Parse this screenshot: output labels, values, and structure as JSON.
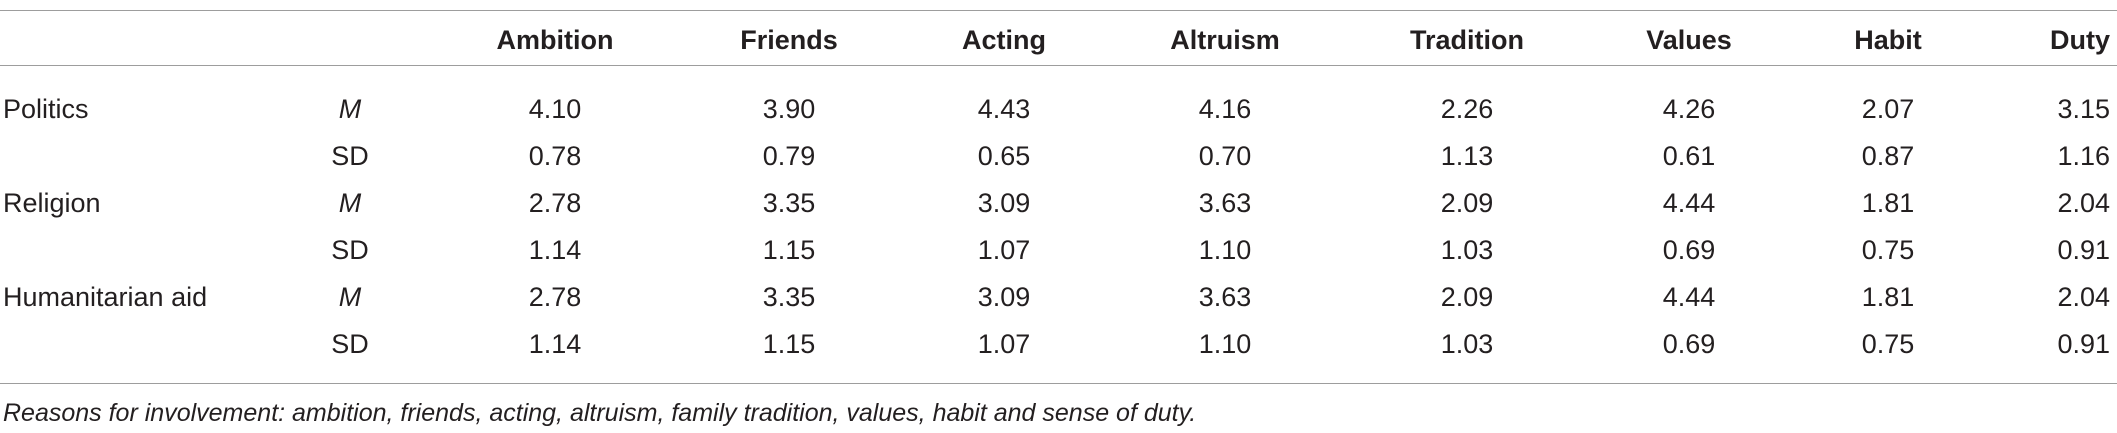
{
  "table": {
    "columns": [
      "Ambition",
      "Friends",
      "Acting",
      "Altruism",
      "Tradition",
      "Values",
      "Habit",
      "Duty"
    ],
    "rows": [
      {
        "group": "Politics",
        "stat": "M",
        "values": [
          "4.10",
          "3.90",
          "4.43",
          "4.16",
          "2.26",
          "4.26",
          "2.07",
          "3.15"
        ]
      },
      {
        "group": "",
        "stat": "SD",
        "values": [
          "0.78",
          "0.79",
          "0.65",
          "0.70",
          "1.13",
          "0.61",
          "0.87",
          "1.16"
        ]
      },
      {
        "group": "Religion",
        "stat": "M",
        "values": [
          "2.78",
          "3.35",
          "3.09",
          "3.63",
          "2.09",
          "4.44",
          "1.81",
          "2.04"
        ]
      },
      {
        "group": "",
        "stat": "SD",
        "values": [
          "1.14",
          "1.15",
          "1.07",
          "1.10",
          "1.03",
          "0.69",
          "0.75",
          "0.91"
        ]
      },
      {
        "group": "Humanitarian aid",
        "stat": "M",
        "values": [
          "2.78",
          "3.35",
          "3.09",
          "3.63",
          "2.09",
          "4.44",
          "1.81",
          "2.04"
        ]
      },
      {
        "group": "",
        "stat": "SD",
        "values": [
          "1.14",
          "1.15",
          "1.07",
          "1.10",
          "1.03",
          "0.69",
          "0.75",
          "0.91"
        ]
      }
    ],
    "footnote": "Reasons for involvement: ambition, friends, acting, altruism, family tradition, values, habit and sense of duty."
  }
}
